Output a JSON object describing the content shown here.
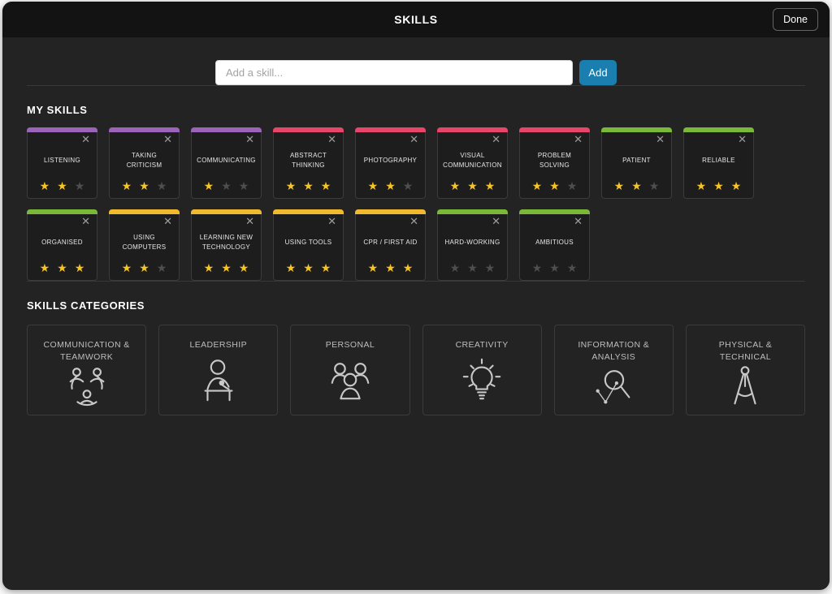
{
  "header": {
    "title": "SKILLS",
    "done_label": "Done"
  },
  "add_skill": {
    "placeholder": "Add a skill...",
    "add_label": "Add"
  },
  "icons": {
    "close_glyph": "✕",
    "star_glyph": "★"
  },
  "colors": {
    "purple": "#9c64b8",
    "pink": "#e8456b",
    "green": "#7ab83a",
    "yellow": "#f0b92e",
    "star_filled": "#f5c426",
    "star_empty": "#4e4e4e",
    "accent_blue": "#1a7fae"
  },
  "my_skills": {
    "heading": "MY SKILLS",
    "max_rating": 3,
    "skills": [
      {
        "name": "LISTENING",
        "color": "purple",
        "rating": 2
      },
      {
        "name": "TAKING CRITICISM",
        "color": "purple",
        "rating": 2
      },
      {
        "name": "COMMUNICATING",
        "color": "purple",
        "rating": 1
      },
      {
        "name": "ABSTRACT THINKING",
        "color": "pink",
        "rating": 3
      },
      {
        "name": "PHOTOGRAPHY",
        "color": "pink",
        "rating": 2
      },
      {
        "name": "VISUAL COMMUNICATION",
        "color": "pink",
        "rating": 3
      },
      {
        "name": "PROBLEM SOLVING",
        "color": "pink",
        "rating": 2
      },
      {
        "name": "PATIENT",
        "color": "green",
        "rating": 2
      },
      {
        "name": "RELIABLE",
        "color": "green",
        "rating": 3
      },
      {
        "name": "ORGANISED",
        "color": "green",
        "rating": 3
      },
      {
        "name": "USING COMPUTERS",
        "color": "yellow",
        "rating": 2
      },
      {
        "name": "LEARNING NEW TECHNOLOGY",
        "color": "yellow",
        "rating": 3
      },
      {
        "name": "USING TOOLS",
        "color": "yellow",
        "rating": 3
      },
      {
        "name": "CPR / FIRST AID",
        "color": "yellow",
        "rating": 3
      },
      {
        "name": "HARD-WORKING",
        "color": "green",
        "rating": 0
      },
      {
        "name": "AMBITIOUS",
        "color": "green",
        "rating": 0
      }
    ]
  },
  "categories": {
    "heading": "SKILLS CATEGORIES",
    "items": [
      {
        "label": "COMMUNICATION & TEAMWORK",
        "icon": "people-network-icon"
      },
      {
        "label": "LEADERSHIP",
        "icon": "speaker-podium-icon"
      },
      {
        "label": "PERSONAL",
        "icon": "people-group-icon"
      },
      {
        "label": "CREATIVITY",
        "icon": "lightbulb-icon"
      },
      {
        "label": "INFORMATION & ANALYSIS",
        "icon": "magnifier-network-icon"
      },
      {
        "label": "PHYSICAL & TECHNICAL",
        "icon": "drafting-compass-icon"
      }
    ]
  }
}
